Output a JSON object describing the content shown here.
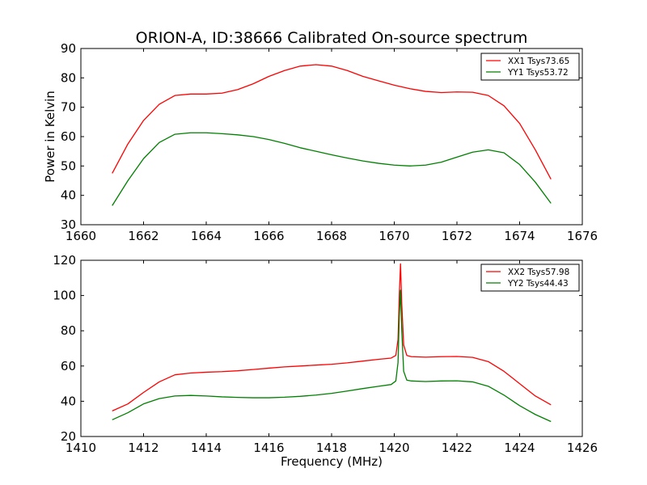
{
  "chart_data": [
    {
      "type": "line",
      "title": "ORION-A, ID:38666 Calibrated On-source spectrum",
      "xlabel": "",
      "ylabel": "Power in Kelvin",
      "xlim": [
        1660,
        1676
      ],
      "ylim": [
        30,
        90
      ],
      "xticks": [
        "1660",
        "1662",
        "1664",
        "1666",
        "1668",
        "1670",
        "1672",
        "1674",
        "1676"
      ],
      "yticks": [
        "30",
        "40",
        "50",
        "60",
        "70",
        "80",
        "90"
      ],
      "grid": false,
      "legend_position": "top-right",
      "series": [
        {
          "name": "XX1 Tsys73.65",
          "color": "#ff0000",
          "x": [
            1661.0,
            1661.5,
            1662.0,
            1662.5,
            1663.0,
            1663.5,
            1664.0,
            1664.5,
            1665.0,
            1665.5,
            1666.0,
            1666.5,
            1667.0,
            1667.5,
            1668.0,
            1668.5,
            1669.0,
            1669.5,
            1670.0,
            1670.5,
            1671.0,
            1671.5,
            1672.0,
            1672.5,
            1673.0,
            1673.5,
            1674.0,
            1674.5,
            1675.0
          ],
          "y": [
            47.5,
            57.5,
            65.5,
            71.0,
            74.0,
            74.5,
            74.5,
            74.8,
            76.0,
            78.0,
            80.5,
            82.5,
            84.0,
            84.5,
            84.0,
            82.5,
            80.5,
            79.0,
            77.5,
            76.3,
            75.4,
            75.0,
            75.2,
            75.1,
            74.0,
            70.5,
            64.5,
            55.5,
            45.5
          ]
        },
        {
          "name": "YY1 Tsys53.72",
          "color": "#008000",
          "x": [
            1661.0,
            1661.5,
            1662.0,
            1662.5,
            1663.0,
            1663.5,
            1664.0,
            1664.5,
            1665.0,
            1665.5,
            1666.0,
            1666.5,
            1667.0,
            1667.5,
            1668.0,
            1668.5,
            1669.0,
            1669.5,
            1670.0,
            1670.5,
            1671.0,
            1671.5,
            1672.0,
            1672.5,
            1673.0,
            1673.5,
            1674.0,
            1674.5,
            1675.0
          ],
          "y": [
            36.5,
            45.0,
            52.5,
            58.0,
            60.8,
            61.3,
            61.3,
            61.0,
            60.6,
            60.0,
            59.0,
            57.7,
            56.2,
            55.0,
            53.8,
            52.7,
            51.7,
            50.9,
            50.3,
            50.0,
            50.3,
            51.3,
            53.0,
            54.7,
            55.5,
            54.5,
            50.5,
            44.5,
            37.3
          ]
        }
      ]
    },
    {
      "type": "line",
      "title": "",
      "xlabel": "Frequency (MHz)",
      "ylabel": "",
      "xlim": [
        1410,
        1426
      ],
      "ylim": [
        20,
        120
      ],
      "xticks": [
        "1410",
        "1412",
        "1414",
        "1416",
        "1418",
        "1420",
        "1422",
        "1424",
        "1426"
      ],
      "yticks": [
        "20",
        "40",
        "60",
        "80",
        "100",
        "120"
      ],
      "grid": false,
      "legend_position": "top-right",
      "series": [
        {
          "name": "XX2 Tsys57.98",
          "color": "#ff0000",
          "x": [
            1411.0,
            1411.5,
            1412.0,
            1412.5,
            1413.0,
            1413.5,
            1414.0,
            1414.5,
            1415.0,
            1415.5,
            1416.0,
            1416.5,
            1417.0,
            1417.5,
            1418.0,
            1418.5,
            1419.0,
            1419.5,
            1419.9,
            1420.05,
            1420.12,
            1420.16,
            1420.2,
            1420.24,
            1420.3,
            1420.4,
            1420.55,
            1421.0,
            1421.5,
            1422.0,
            1422.5,
            1423.0,
            1423.5,
            1424.0,
            1424.5,
            1425.0
          ],
          "y": [
            34.5,
            38.5,
            45.0,
            51.0,
            55.0,
            56.0,
            56.5,
            56.8,
            57.3,
            58.0,
            58.8,
            59.5,
            60.0,
            60.5,
            61.0,
            61.8,
            62.8,
            63.8,
            64.5,
            66.0,
            75.0,
            100.0,
            118.0,
            95.0,
            72.0,
            66.0,
            65.3,
            65.0,
            65.3,
            65.4,
            64.9,
            62.5,
            57.0,
            50.0,
            43.0,
            38.0
          ]
        },
        {
          "name": "YY2 Tsys44.43",
          "color": "#008000",
          "x": [
            1411.0,
            1411.5,
            1412.0,
            1412.5,
            1413.0,
            1413.5,
            1414.0,
            1414.5,
            1415.0,
            1415.5,
            1416.0,
            1416.5,
            1417.0,
            1417.5,
            1418.0,
            1418.5,
            1419.0,
            1419.5,
            1419.9,
            1420.05,
            1420.12,
            1420.16,
            1420.2,
            1420.24,
            1420.3,
            1420.4,
            1420.55,
            1421.0,
            1421.5,
            1422.0,
            1422.5,
            1423.0,
            1423.5,
            1424.0,
            1424.5,
            1425.0
          ],
          "y": [
            29.5,
            33.5,
            38.5,
            41.5,
            43.0,
            43.3,
            43.0,
            42.5,
            42.2,
            42.0,
            42.0,
            42.3,
            42.8,
            43.5,
            44.5,
            45.8,
            47.2,
            48.5,
            49.5,
            51.5,
            62.0,
            88.0,
            103.0,
            80.0,
            57.0,
            52.0,
            51.5,
            51.2,
            51.5,
            51.6,
            51.0,
            48.5,
            43.5,
            37.5,
            32.5,
            28.5
          ]
        }
      ]
    }
  ]
}
